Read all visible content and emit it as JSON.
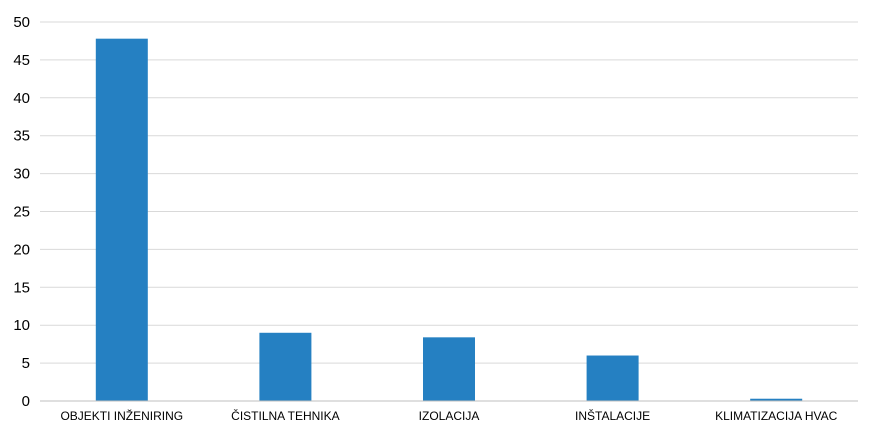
{
  "chart_data": {
    "type": "bar",
    "title": "",
    "xlabel": "",
    "ylabel": "",
    "categories": [
      "OBJEKTI INŽENIRING",
      "ČISTILNA TEHNIKA",
      "IZOLACIJA",
      "INŠTALACIJE",
      "KLIMATIZACIJA HVAC"
    ],
    "values": [
      47.8,
      9.0,
      8.4,
      6.0,
      0.3
    ],
    "ylim": [
      0,
      50
    ],
    "yticks": [
      0,
      5,
      10,
      15,
      20,
      25,
      30,
      35,
      40,
      45,
      50
    ],
    "grid": true,
    "legend": "none",
    "bar_color": "#2580c2",
    "grid_color": "#d9d9d9"
  }
}
